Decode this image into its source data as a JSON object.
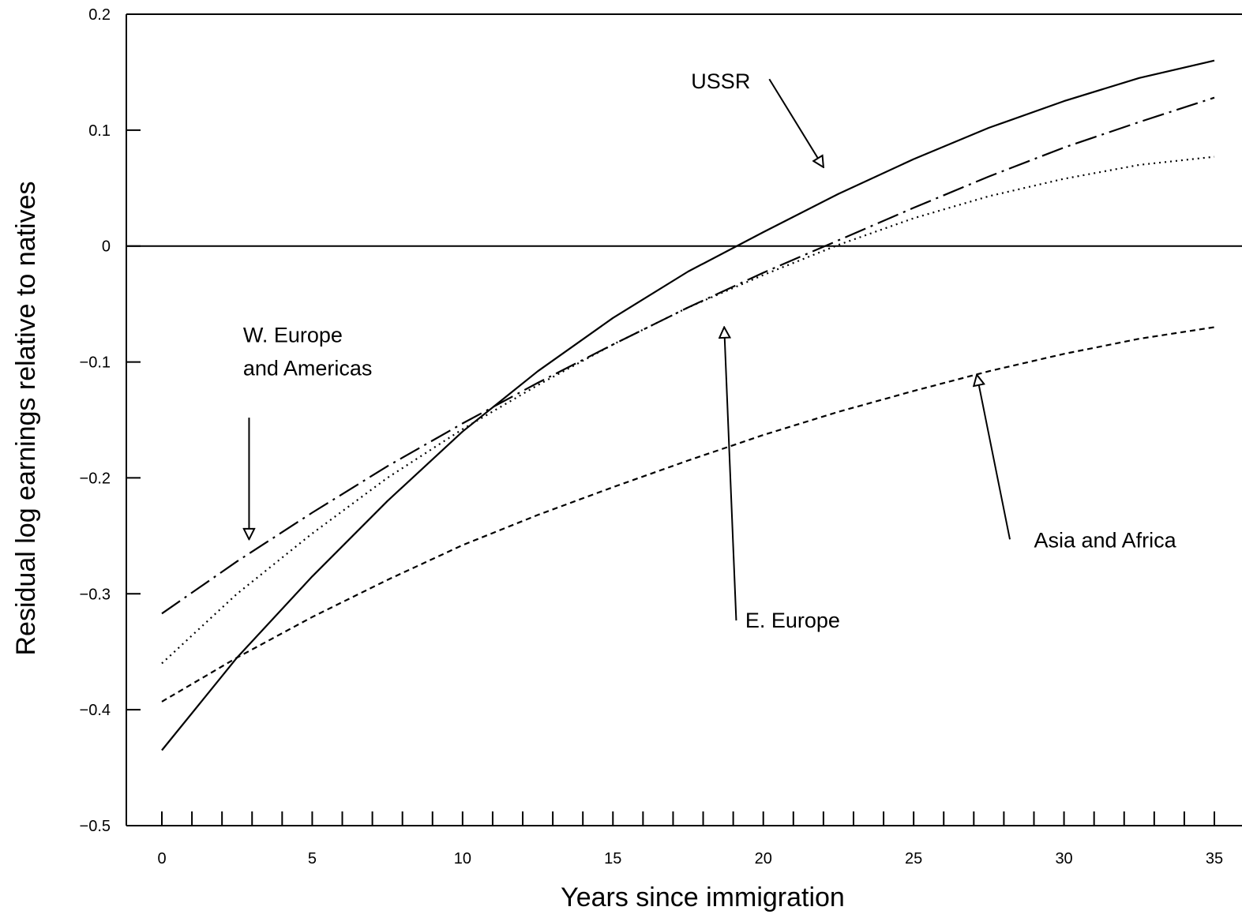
{
  "chart_data": {
    "type": "line",
    "title": "",
    "xlabel": "Years since immigration",
    "ylabel": "Residual log earnings relative to natives",
    "xlim": [
      -1,
      35
    ],
    "ylim": [
      -0.5,
      0.2
    ],
    "xticks": [
      0,
      5,
      10,
      15,
      20,
      25,
      30,
      35
    ],
    "xtick_labels": [
      "0",
      "5",
      "10",
      "15",
      "20",
      "25",
      "30",
      "35"
    ],
    "xminor_step": 1,
    "yticks": [
      -0.5,
      -0.4,
      -0.3,
      -0.2,
      -0.1,
      0,
      0.1,
      0.2
    ],
    "ytick_labels": [
      "−0.5",
      "−0.4",
      "−0.3",
      "−0.2",
      "−0.1",
      "0",
      "0.1",
      "0.2"
    ],
    "reference_line_y": 0,
    "grid": false,
    "legend": "none (series identified by annotations with arrows)",
    "series": [
      {
        "name": "USSR",
        "style": "solid",
        "x": [
          0,
          2.5,
          5,
          7.5,
          10,
          12.5,
          15,
          17.5,
          20,
          22.5,
          25,
          27.5,
          30,
          32.5,
          35
        ],
        "values": [
          -0.435,
          -0.355,
          -0.285,
          -0.22,
          -0.16,
          -0.108,
          -0.062,
          -0.022,
          0.012,
          0.045,
          0.075,
          0.102,
          0.125,
          0.145,
          0.16
        ]
      },
      {
        "name": "W. Europe and Americas",
        "style": "dash-dot",
        "x": [
          0,
          2.5,
          5,
          7.5,
          10,
          12.5,
          15,
          17.5,
          20,
          22.5,
          25,
          27.5,
          30,
          32.5,
          35
        ],
        "values": [
          -0.317,
          -0.272,
          -0.23,
          -0.19,
          -0.153,
          -0.118,
          -0.085,
          -0.053,
          -0.023,
          0.005,
          0.033,
          0.06,
          0.085,
          0.107,
          0.128
        ]
      },
      {
        "name": "E. Europe",
        "style": "dotted",
        "x": [
          0,
          2.5,
          5,
          7.5,
          10,
          12.5,
          15,
          17.5,
          20,
          22.5,
          25,
          27.5,
          30,
          32.5,
          35
        ],
        "values": [
          -0.36,
          -0.3,
          -0.248,
          -0.2,
          -0.158,
          -0.12,
          -0.085,
          -0.053,
          -0.025,
          0.001,
          0.024,
          0.043,
          0.058,
          0.07,
          0.077
        ]
      },
      {
        "name": "Asia and Africa",
        "style": "dashed",
        "x": [
          0,
          2.5,
          5,
          7.5,
          10,
          12.5,
          15,
          17.5,
          20,
          22.5,
          25,
          27.5,
          30,
          32.5,
          35
        ],
        "values": [
          -0.393,
          -0.355,
          -0.32,
          -0.288,
          -0.258,
          -0.232,
          -0.208,
          -0.185,
          -0.163,
          -0.143,
          -0.125,
          -0.108,
          -0.093,
          -0.08,
          -0.07
        ]
      }
    ],
    "annotations": [
      {
        "lines": [
          "USSR"
        ],
        "text_at": [
          17.6,
          0.136
        ],
        "arrow_from": [
          20.2,
          0.144
        ],
        "arrow_to": [
          22,
          0.068
        ]
      },
      {
        "lines": [
          "W. Europe",
          "and Americas"
        ],
        "text_at": [
          2.7,
          -0.083
        ],
        "arrow_from": [
          2.9,
          -0.148
        ],
        "arrow_to": [
          2.9,
          -0.253
        ]
      },
      {
        "lines": [
          "E. Europe"
        ],
        "text_at": [
          19.4,
          -0.329
        ],
        "arrow_from": [
          19.1,
          -0.323
        ],
        "arrow_to": [
          18.7,
          -0.07
        ]
      },
      {
        "lines": [
          "Asia and Africa"
        ],
        "text_at": [
          29,
          -0.26
        ],
        "arrow_from": [
          28.2,
          -0.253
        ],
        "arrow_to": [
          27.1,
          -0.111
        ]
      }
    ]
  }
}
